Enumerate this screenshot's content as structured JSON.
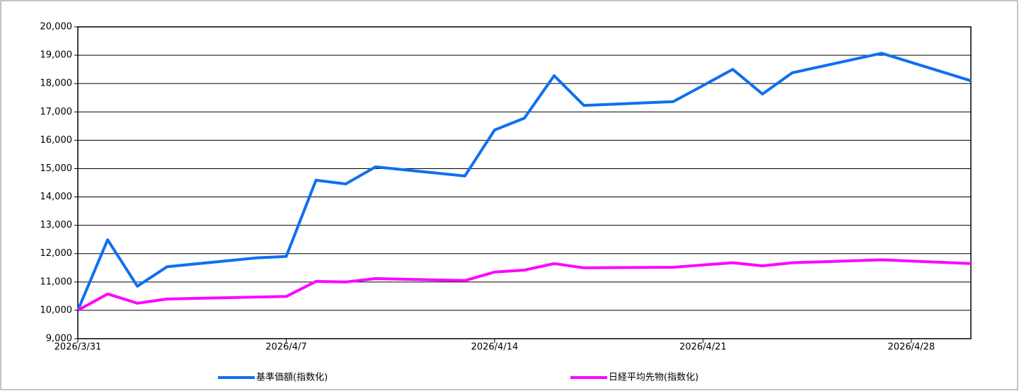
{
  "chart_data": {
    "type": "line",
    "x": [
      "2026/3/31",
      "2026/4/1",
      "2026/4/2",
      "2026/4/3",
      "2026/4/6",
      "2026/4/7",
      "2026/4/8",
      "2026/4/9",
      "2026/4/10",
      "2026/4/13",
      "2026/4/14",
      "2026/4/15",
      "2026/4/16",
      "2026/4/17",
      "2026/4/20",
      "2026/4/21",
      "2026/4/22",
      "2026/4/23",
      "2026/4/24",
      "2026/4/27",
      "2026/4/30"
    ],
    "series": [
      {
        "name": "基準価額(指数化)",
        "color": "#0f6ff0",
        "values": [
          10000,
          12490,
          10850,
          11540,
          11850,
          11900,
          14590,
          14460,
          15060,
          14740,
          16360,
          16780,
          18280,
          17230,
          17360,
          17930,
          18500,
          17630,
          18380,
          19070,
          18100
        ]
      },
      {
        "name": "日経平均先物(指数化)",
        "color": "#ff00ff",
        "values": [
          10000,
          10580,
          10250,
          10400,
          10470,
          10490,
          11020,
          11000,
          11120,
          11050,
          11350,
          11420,
          11650,
          11500,
          11520,
          11600,
          11680,
          11570,
          11680,
          11780,
          11650
        ]
      }
    ],
    "xlim": [
      "2026/3/31",
      "2026/4/30"
    ],
    "xticks": [
      "2026/3/31",
      "2026/4/7",
      "2026/4/14",
      "2026/4/21",
      "2026/4/28"
    ],
    "ylim": [
      9000,
      20000
    ],
    "yticks": [
      {
        "value": 9000,
        "label": "9,000"
      },
      {
        "value": 10000,
        "label": "10,000"
      },
      {
        "value": 11000,
        "label": "11,000"
      },
      {
        "value": 12000,
        "label": "12,000"
      },
      {
        "value": 13000,
        "label": "13,000"
      },
      {
        "value": 14000,
        "label": "14,000"
      },
      {
        "value": 15000,
        "label": "15,000"
      },
      {
        "value": 16000,
        "label": "16,000"
      },
      {
        "value": 17000,
        "label": "17,000"
      },
      {
        "value": 18000,
        "label": "18,000"
      },
      {
        "value": 19000,
        "label": "19,000"
      },
      {
        "value": 20000,
        "label": "20,000"
      }
    ],
    "grid": true,
    "legend": "bottom"
  }
}
